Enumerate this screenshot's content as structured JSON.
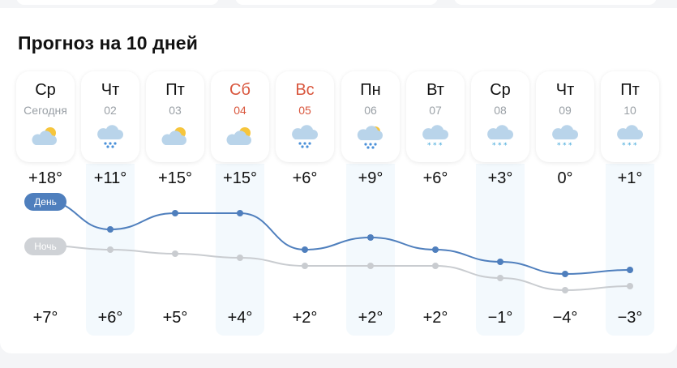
{
  "title": "Прогноз на 10 дней",
  "labels": {
    "day": "День",
    "night": "Ночь"
  },
  "colors": {
    "day_line": "#4f7fbd",
    "night_line": "#c9ccd0",
    "weekend": "#d9573e",
    "date_gray": "#9aa0a6"
  },
  "days": [
    {
      "name": "Ср",
      "date": "Сегодня",
      "weekend": false,
      "icon": "partly-cloudy-icon",
      "day_temp": "+18°",
      "night_temp": "+7°",
      "day": 18,
      "night": 7
    },
    {
      "name": "Чт",
      "date": "02",
      "weekend": false,
      "icon": "rain-icon",
      "day_temp": "+11°",
      "night_temp": "+6°",
      "day": 11,
      "night": 6
    },
    {
      "name": "Пт",
      "date": "03",
      "weekend": false,
      "icon": "partly-cloudy-icon",
      "day_temp": "+15°",
      "night_temp": "+5°",
      "day": 15,
      "night": 5
    },
    {
      "name": "Сб",
      "date": "04",
      "weekend": true,
      "icon": "partly-cloudy-icon",
      "day_temp": "+15°",
      "night_temp": "+4°",
      "day": 15,
      "night": 4
    },
    {
      "name": "Вс",
      "date": "05",
      "weekend": true,
      "icon": "rain-icon",
      "day_temp": "+6°",
      "night_temp": "+2°",
      "day": 6,
      "night": 2
    },
    {
      "name": "Пн",
      "date": "06",
      "weekend": false,
      "icon": "sun-rain-icon",
      "day_temp": "+9°",
      "night_temp": "+2°",
      "day": 9,
      "night": 2
    },
    {
      "name": "Вт",
      "date": "07",
      "weekend": false,
      "icon": "snow-icon",
      "day_temp": "+6°",
      "night_temp": "+2°",
      "day": 6,
      "night": 2
    },
    {
      "name": "Ср",
      "date": "08",
      "weekend": false,
      "icon": "snow-icon",
      "day_temp": "+3°",
      "night_temp": "−1°",
      "day": 3,
      "night": -1
    },
    {
      "name": "Чт",
      "date": "09",
      "weekend": false,
      "icon": "snow-icon",
      "day_temp": "0°",
      "night_temp": "−4°",
      "day": 0,
      "night": -4
    },
    {
      "name": "Пт",
      "date": "10",
      "weekend": false,
      "icon": "snow-icon",
      "day_temp": "+1°",
      "night_temp": "−3°",
      "day": 1,
      "night": -3
    }
  ]
}
